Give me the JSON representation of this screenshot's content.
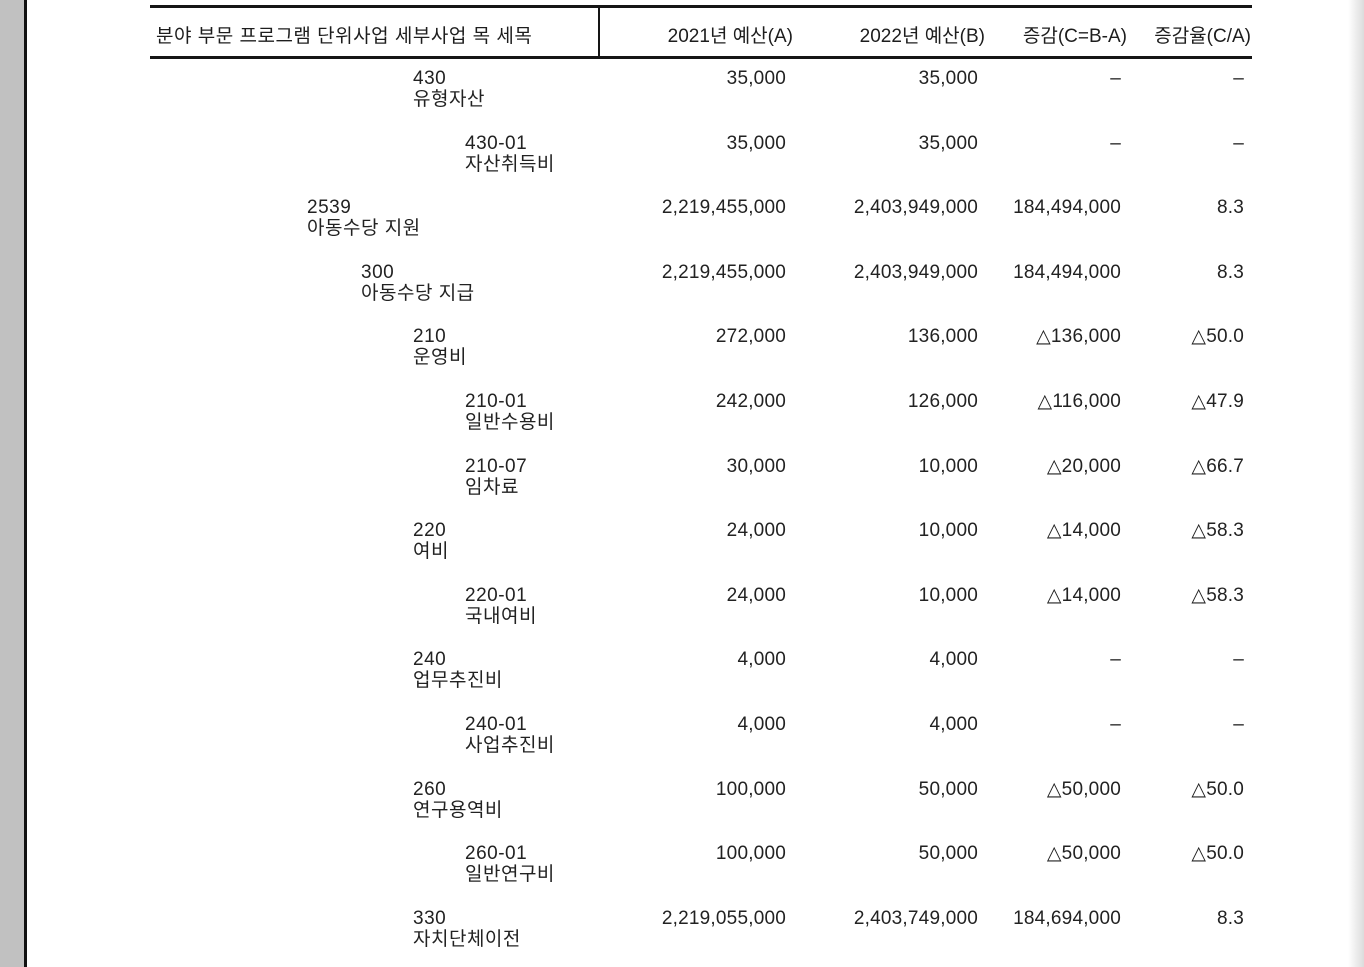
{
  "viewer": {
    "desktop_color": "#c1c1c1",
    "page_color": "#ffffff",
    "rule_color": "#151515",
    "text_color": "#222222"
  },
  "table": {
    "header": {
      "category_label": "분야 부문 프로그램 단위사업 세부사업 목 세목",
      "col_2021": "2021년 예산(A)",
      "col_2022": "2022년 예산(B)",
      "col_change": "증감(C=B-A)",
      "col_rate": "증감율(C/A)"
    },
    "rows": [
      {
        "level": 2,
        "code": "430",
        "name": "유형자산",
        "y2021": "35,000",
        "y2022": "35,000",
        "change": "–",
        "rate": "–"
      },
      {
        "level": 3,
        "code": "430-01",
        "name": "자산취득비",
        "y2021": "35,000",
        "y2022": "35,000",
        "change": "–",
        "rate": "–"
      },
      {
        "level": 0,
        "code": "2539",
        "name": "아동수당 지원",
        "y2021": "2,219,455,000",
        "y2022": "2,403,949,000",
        "change": "184,494,000",
        "rate": "8.3"
      },
      {
        "level": 1,
        "code": "300",
        "name": "아동수당 지급",
        "y2021": "2,219,455,000",
        "y2022": "2,403,949,000",
        "change": "184,494,000",
        "rate": "8.3"
      },
      {
        "level": 2,
        "code": "210",
        "name": "운영비",
        "y2021": "272,000",
        "y2022": "136,000",
        "change": "△136,000",
        "rate": "△50.0"
      },
      {
        "level": 3,
        "code": "210-01",
        "name": "일반수용비",
        "y2021": "242,000",
        "y2022": "126,000",
        "change": "△116,000",
        "rate": "△47.9"
      },
      {
        "level": 3,
        "code": "210-07",
        "name": "임차료",
        "y2021": "30,000",
        "y2022": "10,000",
        "change": "△20,000",
        "rate": "△66.7"
      },
      {
        "level": 2,
        "code": "220",
        "name": "여비",
        "y2021": "24,000",
        "y2022": "10,000",
        "change": "△14,000",
        "rate": "△58.3"
      },
      {
        "level": 3,
        "code": "220-01",
        "name": "국내여비",
        "y2021": "24,000",
        "y2022": "10,000",
        "change": "△14,000",
        "rate": "△58.3"
      },
      {
        "level": 2,
        "code": "240",
        "name": "업무추진비",
        "y2021": "4,000",
        "y2022": "4,000",
        "change": "–",
        "rate": "–"
      },
      {
        "level": 3,
        "code": "240-01",
        "name": "사업추진비",
        "y2021": "4,000",
        "y2022": "4,000",
        "change": "–",
        "rate": "–"
      },
      {
        "level": 2,
        "code": "260",
        "name": "연구용역비",
        "y2021": "100,000",
        "y2022": "50,000",
        "change": "△50,000",
        "rate": "△50.0"
      },
      {
        "level": 3,
        "code": "260-01",
        "name": "일반연구비",
        "y2021": "100,000",
        "y2022": "50,000",
        "change": "△50,000",
        "rate": "△50.0"
      },
      {
        "level": 2,
        "code": "330",
        "name": "자치단체이전",
        "y2021": "2,219,055,000",
        "y2022": "2,403,749,000",
        "change": "184,694,000",
        "rate": "8.3"
      }
    ]
  }
}
